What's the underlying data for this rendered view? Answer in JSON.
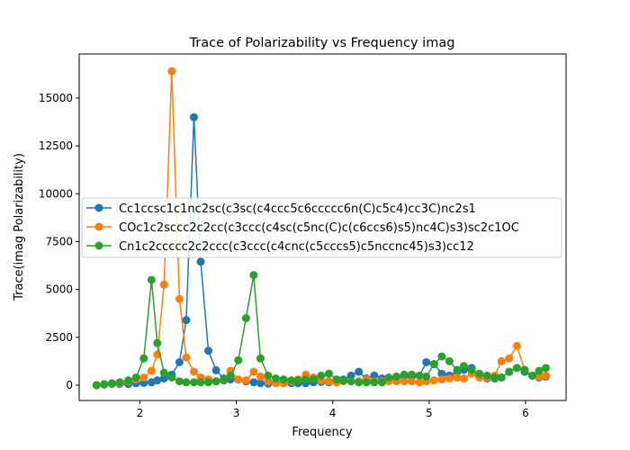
{
  "chart_data": {
    "type": "line",
    "title": "Trace of Polarizability vs Frequency imag",
    "xlabel": "Frequency",
    "ylabel": "Trace(imag Polarizability)",
    "xlim": [
      1.37,
      6.42
    ],
    "ylim": [
      -800,
      17300
    ],
    "xticks": [
      2,
      3,
      4,
      5,
      6
    ],
    "yticks": [
      0,
      2500,
      5000,
      7500,
      10000,
      12500,
      15000
    ],
    "grid": false,
    "legend_position": "center-left",
    "x": [
      1.55,
      1.63,
      1.71,
      1.79,
      1.88,
      1.96,
      2.04,
      2.12,
      2.18,
      2.25,
      2.33,
      2.41,
      2.48,
      2.56,
      2.63,
      2.71,
      2.79,
      2.87,
      2.94,
      3.02,
      3.1,
      3.18,
      3.25,
      3.33,
      3.41,
      3.49,
      3.57,
      3.64,
      3.72,
      3.8,
      3.88,
      3.96,
      4.04,
      4.11,
      4.19,
      4.27,
      4.35,
      4.43,
      4.51,
      4.58,
      4.66,
      4.74,
      4.82,
      4.9,
      4.97,
      5.05,
      5.13,
      5.21,
      5.29,
      5.36,
      5.44,
      5.52,
      5.6,
      5.68,
      5.75,
      5.83,
      5.91,
      5.99,
      6.07,
      6.14,
      6.21
    ],
    "series": [
      {
        "name": "Cc1ccsc1c1nc2sc(c3sc(c4ccc5c6ccccc6n(C)c5c4)cc3C)nc2s1",
        "color": "#1f77b4",
        "values": [
          0,
          30,
          60,
          60,
          60,
          100,
          120,
          150,
          250,
          350,
          550,
          1200,
          3400,
          14000,
          6450,
          1800,
          780,
          350,
          300,
          290,
          200,
          150,
          100,
          80,
          120,
          150,
          100,
          100,
          100,
          150,
          170,
          150,
          200,
          300,
          500,
          700,
          350,
          500,
          350,
          300,
          400,
          450,
          450,
          500,
          1200,
          1100,
          600,
          500,
          700,
          800,
          900,
          500,
          350,
          350,
          400,
          700,
          900,
          700,
          500,
          400,
          450
        ]
      },
      {
        "name": "COc1c2sccc2c2cc(c3ccc(c4sc(c5nc(C)c(c6ccs6)s5)nc4C)s3)sc2c1OC",
        "color": "#ff7f0e",
        "values": [
          0,
          50,
          80,
          100,
          200,
          300,
          400,
          750,
          1600,
          5250,
          16400,
          4500,
          1450,
          700,
          400,
          300,
          200,
          250,
          750,
          300,
          250,
          700,
          450,
          200,
          100,
          100,
          200,
          300,
          550,
          400,
          250,
          200,
          150,
          200,
          200,
          200,
          300,
          200,
          200,
          200,
          200,
          200,
          200,
          150,
          200,
          250,
          300,
          350,
          400,
          350,
          600,
          400,
          400,
          500,
          1250,
          1400,
          2050,
          800,
          500,
          450,
          500
        ]
      },
      {
        "name": "Cn1c2ccccc2c2ccc(c3ccc(c4cnc(c5cccs5)c5nccnc45)s3)cc12",
        "color": "#2ca02c",
        "values": [
          0,
          50,
          100,
          150,
          250,
          400,
          1400,
          5500,
          2200,
          650,
          400,
          200,
          150,
          150,
          150,
          150,
          200,
          250,
          500,
          1300,
          3500,
          5750,
          1400,
          500,
          350,
          300,
          250,
          250,
          300,
          300,
          500,
          600,
          300,
          250,
          200,
          150,
          150,
          150,
          150,
          400,
          450,
          550,
          550,
          500,
          450,
          1100,
          1500,
          1250,
          800,
          1000,
          800,
          600,
          500,
          400,
          400,
          700,
          900,
          800,
          500,
          750,
          900
        ]
      }
    ]
  }
}
